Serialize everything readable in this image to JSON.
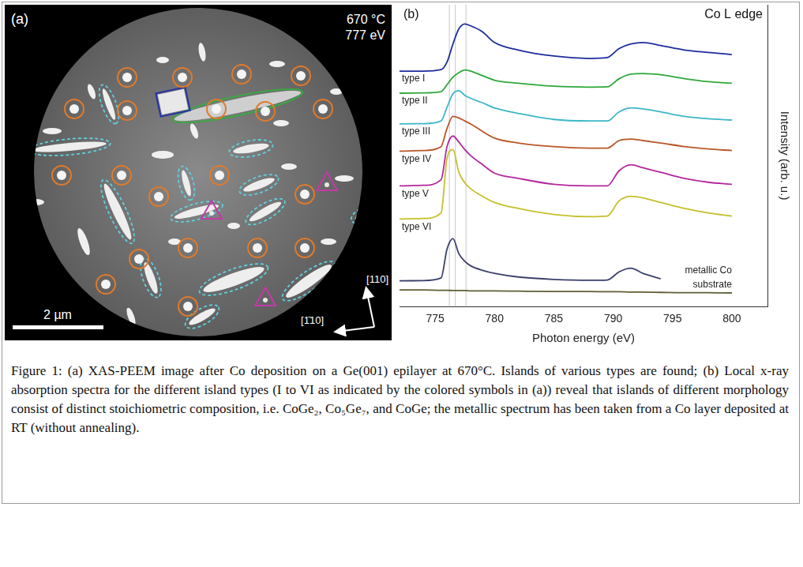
{
  "panel_a": {
    "label": "(a)",
    "temperature": "670 °C",
    "energy": "777 eV",
    "scale_bar": "2 µm",
    "directions": [
      "[110]",
      "[1̄10]"
    ]
  },
  "chart_data": {
    "type": "line",
    "panel_label": "(b)",
    "title": "Co L edge",
    "x_label": "Photon energy (eV)",
    "y_label": "Intensity (arb. u.)",
    "x": [
      772,
      774,
      775.5,
      776,
      776.5,
      777,
      777.5,
      778,
      779,
      780,
      782,
      785,
      788,
      789.5,
      790.5,
      791.5,
      792.5,
      794,
      796,
      798,
      800
    ],
    "series": [
      {
        "name": "type I",
        "color": "#1e2c9c",
        "values": [
          7.8,
          7.8,
          7.85,
          8.1,
          8.7,
          9.2,
          9.36,
          9.3,
          9.1,
          8.75,
          8.5,
          8.3,
          8.22,
          8.25,
          8.55,
          8.7,
          8.75,
          8.65,
          8.5,
          8.42,
          8.35
        ]
      },
      {
        "name": "type II",
        "color": "#2ea83c",
        "values": [
          7.07,
          7.08,
          7.12,
          7.35,
          7.6,
          7.75,
          7.84,
          7.8,
          7.65,
          7.5,
          7.4,
          7.3,
          7.27,
          7.28,
          7.55,
          7.7,
          7.72,
          7.68,
          7.55,
          7.45,
          7.4
        ]
      },
      {
        "name": "type III",
        "color": "#3cb6c6",
        "values": [
          6.05,
          6.06,
          6.15,
          6.6,
          7.05,
          7.15,
          7.0,
          6.9,
          6.75,
          6.58,
          6.4,
          6.2,
          6.15,
          6.15,
          6.45,
          6.58,
          6.55,
          6.45,
          6.3,
          6.22,
          6.18
        ]
      },
      {
        "name": "type IV",
        "color": "#b8562a",
        "values": [
          5.15,
          5.17,
          5.3,
          5.9,
          6.3,
          6.25,
          6.15,
          6.05,
          5.8,
          5.58,
          5.42,
          5.3,
          5.25,
          5.25,
          5.5,
          5.55,
          5.5,
          5.42,
          5.3,
          5.22,
          5.17
        ]
      },
      {
        "name": "type V",
        "color": "#b5279e",
        "values": [
          4.0,
          4.02,
          4.2,
          5.3,
          5.65,
          5.45,
          5.2,
          5.0,
          4.7,
          4.42,
          4.25,
          4.05,
          4.0,
          4.0,
          4.5,
          4.7,
          4.6,
          4.45,
          4.25,
          4.12,
          4.05
        ]
      },
      {
        "name": "type VI",
        "color": "#c4c02a",
        "values": [
          2.9,
          2.92,
          3.1,
          4.9,
          5.2,
          4.45,
          4.1,
          3.9,
          3.65,
          3.45,
          3.25,
          3.05,
          2.98,
          3.0,
          3.5,
          3.65,
          3.6,
          3.45,
          3.25,
          3.1,
          3.0
        ]
      },
      {
        "name": "metallic Co",
        "color": "#3a3f6b",
        "values": [
          0.85,
          0.86,
          0.95,
          1.9,
          2.25,
          1.75,
          1.5,
          1.35,
          1.2,
          1.1,
          0.98,
          0.9,
          0.87,
          0.88,
          1.15,
          1.27,
          1.1,
          0.92,
          null,
          null,
          null
        ]
      },
      {
        "name": "substrate",
        "color": "#5e5e36",
        "values": [
          0.55,
          0.55,
          0.54,
          0.54,
          0.53,
          0.53,
          0.53,
          0.52,
          0.52,
          0.52,
          0.51,
          0.5,
          0.5,
          0.49,
          0.49,
          0.48,
          0.48,
          0.47,
          0.46,
          0.46,
          0.45
        ]
      }
    ],
    "reference_lines": [
      776.2,
      776.7,
      777.6
    ],
    "xlim": [
      772,
      803
    ],
    "xticks": [
      775,
      780,
      785,
      790,
      795,
      800
    ],
    "ylim": [
      0,
      10
    ],
    "tick_labels": "x",
    "grid": false,
    "legend": false
  },
  "caption": "Figure 1: (a) XAS-PEEM image after Co deposition on a Ge(001) epilayer at 670°C. Islands of various types are found; (b) Local x-ray absorption spectra for the different island types (I to VI as indicated by the colored symbols in (a)) reveal that islands of different morphology consist of distinct stoichiometric composition, i.e. CoGe₂, Co₅Ge₇, and CoGe; the metallic spectrum has been taken from a Co layer deposited at RT (without annealing)."
}
